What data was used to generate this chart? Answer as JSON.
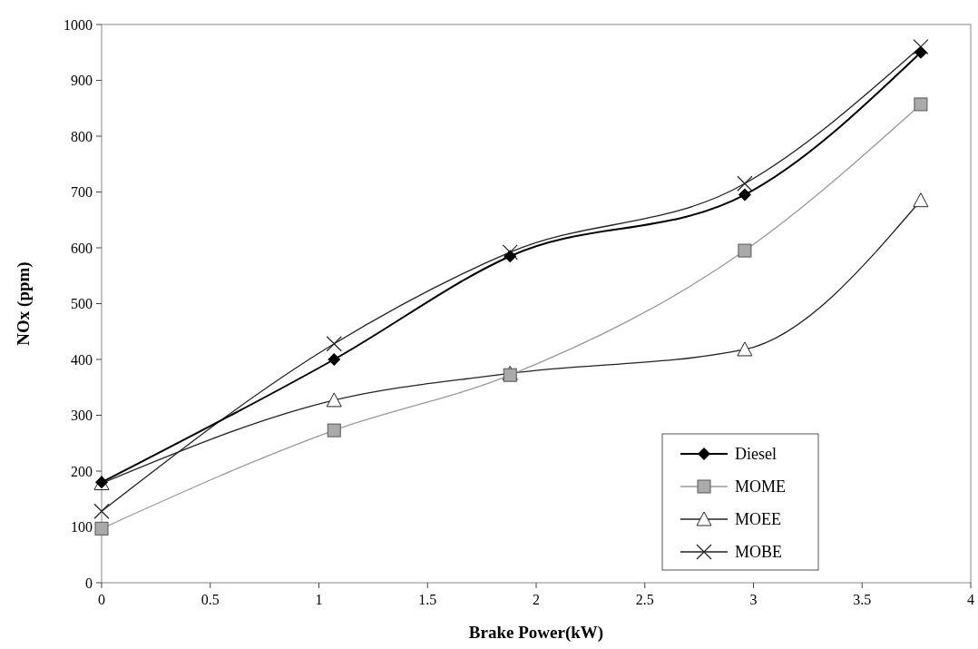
{
  "chart_data": {
    "type": "line",
    "xlabel": "Brake Power(kW)",
    "ylabel": "NOx (ppm)",
    "xlim": [
      0,
      4
    ],
    "xticks": [
      0,
      0.5,
      1,
      1.5,
      2,
      2.5,
      3,
      3.5,
      4
    ],
    "ylim": [
      0,
      1000
    ],
    "yticks": [
      0,
      100,
      200,
      300,
      400,
      500,
      600,
      700,
      800,
      900,
      1000
    ],
    "x": [
      0,
      1.07,
      1.88,
      2.96,
      3.77
    ],
    "grid": false,
    "legend": "bottom right",
    "series": [
      {
        "name": "Diesel",
        "color": "#000000",
        "marker": "diamond",
        "values": [
          180,
          400,
          585,
          695,
          950
        ]
      },
      {
        "name": "MOME",
        "color": "#999999",
        "marker": "square",
        "values": [
          97,
          273,
          372,
          595,
          857
        ]
      },
      {
        "name": "MOEE",
        "color": "#222222",
        "marker": "triangle",
        "values": [
          178,
          327,
          375,
          418,
          685
        ]
      },
      {
        "name": "MOBE",
        "color": "#222222",
        "marker": "cross",
        "values": [
          128,
          428,
          592,
          715,
          960
        ]
      }
    ]
  }
}
